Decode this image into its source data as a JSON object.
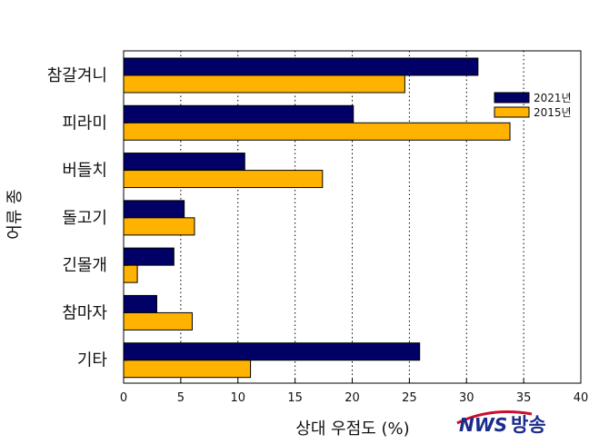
{
  "chart_data": {
    "type": "bar",
    "orientation": "horizontal",
    "categories": [
      "참갈겨니",
      "피라미",
      "버들치",
      "돌고기",
      "긴몰개",
      "참마자",
      "기타"
    ],
    "series": [
      {
        "name": "2021년",
        "color": "#000066",
        "values": [
          31.0,
          20.1,
          10.6,
          5.3,
          4.4,
          2.9,
          25.9
        ]
      },
      {
        "name": "2015년",
        "color": "#FFB300",
        "values": [
          24.6,
          33.8,
          17.4,
          6.2,
          1.2,
          6.0,
          11.1
        ]
      }
    ],
    "xlabel": "상대 우점도 (%)",
    "ylabel": "어류 종",
    "xlim": [
      0,
      40
    ],
    "xticks": [
      "0",
      "5",
      "10",
      "15",
      "20",
      "25",
      "30",
      "35",
      "40"
    ],
    "grid": "vertical dotted",
    "legend_position": "top-right"
  },
  "watermark": {
    "text_left": "NWS",
    "text_right": "방송"
  }
}
